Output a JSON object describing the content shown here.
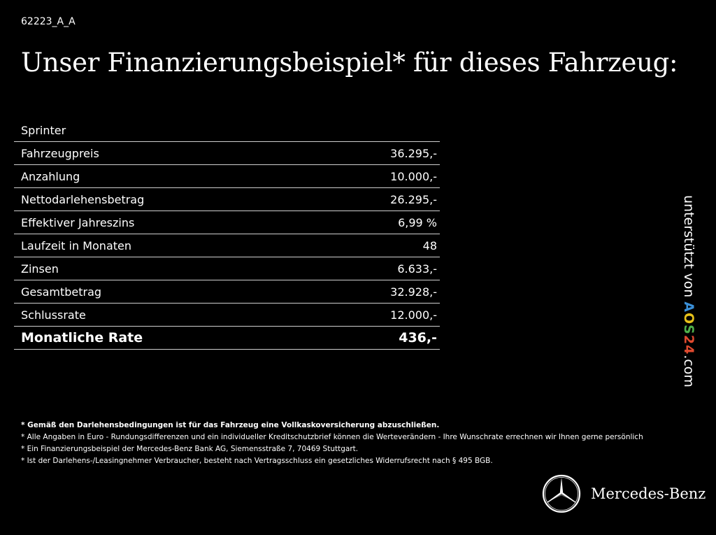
{
  "reference_code": "62223_A_A",
  "headline": "Unser Finanzierungsbeispiel* für dieses Fahrzeug:",
  "model": "Sprinter",
  "rows": [
    {
      "label": "Fahrzeugpreis",
      "value": "36.295,-"
    },
    {
      "label": "Anzahlung",
      "value": "10.000,-"
    },
    {
      "label": "Nettodarlehensbetrag",
      "value": "26.295,-"
    },
    {
      "label": "Effektiver Jahreszins",
      "value": "6,99 %"
    },
    {
      "label": "Laufzeit in Monaten",
      "value": "48"
    },
    {
      "label": "Zinsen",
      "value": "6.633,-"
    },
    {
      "label": "Gesamtbetrag",
      "value": "32.928,-"
    },
    {
      "label": "Schlussrate",
      "value": "12.000,-"
    }
  ],
  "total": {
    "label": "Monatliche Rate",
    "value": "436,-"
  },
  "sidebar": {
    "prefix": "unterstützt von ",
    "logo_parts": [
      "A",
      "O",
      "S",
      "24"
    ],
    "suffix": ".com"
  },
  "footnotes": [
    "* Gemäß den Darlehensbedingungen ist für das Fahrzeug eine Vollkaskoversicherung abzuschließen.",
    "* Alle Angaben in Euro - Rundungsdifferenzen und ein individueller Kreditschutzbrief können die Werteverändern - Ihre Wunschrate errechnen wir Ihnen gerne persönlich",
    "* Ein Finanzierungsbeispiel der Mercedes-Benz Bank AG, Siemensstraße 7, 70469 Stuttgart.",
    "* Ist der Darlehens-/Leasingnehmer Verbraucher, besteht nach Vertragsschluss ein gesetzliches Widerrufsrecht nach § 495 BGB."
  ],
  "brand_name": "Mercedes-Benz",
  "colors": {
    "background": "#000000",
    "text": "#ffffff",
    "logo_a": "#3a8fd8",
    "logo_o": "#e7c21a",
    "logo_s": "#4fb04a",
    "logo_24": "#e04a2f"
  }
}
